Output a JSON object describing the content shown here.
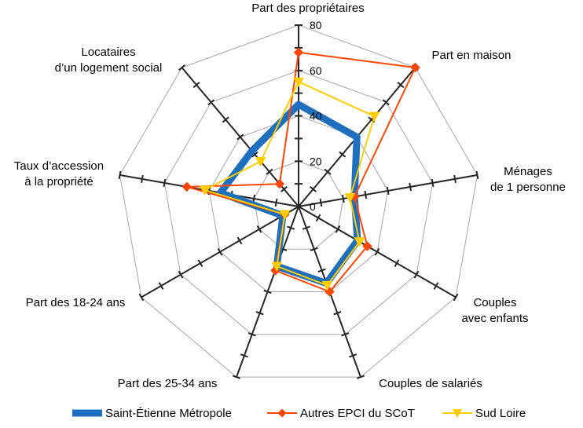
{
  "chart_data": {
    "type": "radar",
    "axes": [
      [
        "Part des propriétaires"
      ],
      [
        "Part en maison"
      ],
      [
        "Ménages",
        "de 1 personne"
      ],
      [
        "Couples",
        "avec enfants"
      ],
      [
        "Couples de salariés"
      ],
      [
        "Part des 25-34 ans"
      ],
      [
        "Part des 18-24 ans"
      ],
      [
        "Taux d’accession",
        "à la propriété"
      ],
      [
        "Locataires",
        "d’un logement social"
      ]
    ],
    "rmin": 0,
    "rmax": 80,
    "ticks": [
      "0",
      "20",
      "40",
      "60",
      "80"
    ],
    "tick_values": [
      0,
      20,
      40,
      60,
      80
    ],
    "minor_step": 10,
    "grid": true,
    "legend_position": "bottom",
    "series": [
      {
        "name": "Saint-Étienne Métropole",
        "color": "#1f6fbf",
        "marker": "none",
        "values": [
          45,
          40,
          25,
          30,
          36,
          28,
          8,
          35,
          32
        ]
      },
      {
        "name": "Autres EPCI du SCoT",
        "color": "#ff4500",
        "marker": "diamond",
        "values": [
          68,
          80,
          25,
          35,
          40,
          30,
          7,
          50,
          13
        ]
      },
      {
        "name": "Sud Loire",
        "color": "#ffcc00",
        "marker": "triangle-down",
        "values": [
          55,
          52,
          23,
          31,
          37,
          28,
          7,
          42,
          26
        ]
      }
    ]
  }
}
